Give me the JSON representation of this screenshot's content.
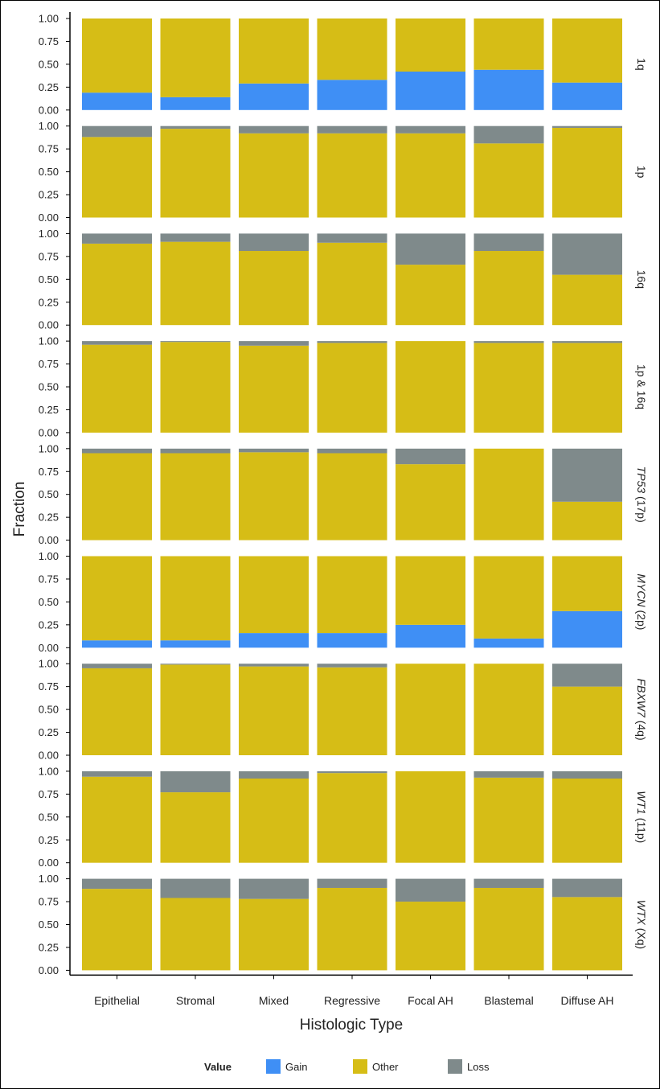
{
  "chart_data": {
    "type": "bar",
    "stacked": true,
    "facet_layout": "rows",
    "xlabel": "Histologic Type",
    "ylabel": "Fraction",
    "ylim": [
      0,
      1
    ],
    "yticks": [
      "0.00",
      "0.25",
      "0.50",
      "0.75",
      "1.00"
    ],
    "categories": [
      "Epithelial",
      "Stromal",
      "Mixed",
      "Regressive",
      "Focal AH",
      "Blastemal",
      "Diffuse AH"
    ],
    "legend": {
      "title": "Value",
      "position": "bottom",
      "items": [
        {
          "label": "Gain",
          "color": "#3f8ff5"
        },
        {
          "label": "Other",
          "color": "#d6bd16"
        },
        {
          "label": "Loss",
          "color": "#7f8a8b"
        }
      ]
    },
    "panels": [
      {
        "label": "1q",
        "italic": false,
        "gain": [
          0.19,
          0.14,
          0.29,
          0.33,
          0.42,
          0.44,
          0.3
        ],
        "loss": [
          0,
          0,
          0,
          0,
          0,
          0,
          0
        ]
      },
      {
        "label": "1p",
        "italic": false,
        "gain": [
          0,
          0,
          0,
          0,
          0,
          0,
          0
        ],
        "loss": [
          0.12,
          0.03,
          0.08,
          0.08,
          0.08,
          0.19,
          0.02
        ]
      },
      {
        "label": "16q",
        "italic": false,
        "gain": [
          0,
          0,
          0,
          0,
          0,
          0,
          0
        ],
        "loss": [
          0.11,
          0.09,
          0.19,
          0.1,
          0.34,
          0.19,
          0.45
        ]
      },
      {
        "label": "1p & 16q",
        "italic": false,
        "gain": [
          0,
          0,
          0,
          0,
          0,
          0,
          0
        ],
        "loss": [
          0.04,
          0.01,
          0.05,
          0.02,
          0,
          0.02,
          0.02
        ]
      },
      {
        "label": "TP53 (17p)",
        "italic_part": "TP53",
        "rest_part": " (17p)",
        "gain": [
          0,
          0,
          0,
          0,
          0,
          0,
          0
        ],
        "loss": [
          0.05,
          0.05,
          0.04,
          0.05,
          0.17,
          0,
          0.58
        ]
      },
      {
        "label": "MYCN (2p)",
        "italic_part": "MYCN",
        "rest_part": " (2p)",
        "gain": [
          0.08,
          0.08,
          0.16,
          0.16,
          0.25,
          0.1,
          0.4
        ],
        "loss": [
          0,
          0,
          0,
          0,
          0,
          0,
          0
        ]
      },
      {
        "label": "FBXW7 (4q)",
        "italic_part": "FBXW7",
        "rest_part": " (4q)",
        "gain": [
          0,
          0,
          0,
          0,
          0,
          0,
          0
        ],
        "loss": [
          0.05,
          0.01,
          0.03,
          0.04,
          0,
          0,
          0.25
        ]
      },
      {
        "label": "WT1 (11p)",
        "italic_part": "WT1",
        "rest_part": " (11p)",
        "gain": [
          0,
          0,
          0,
          0,
          0,
          0,
          0
        ],
        "loss": [
          0.06,
          0.23,
          0.08,
          0.02,
          0,
          0.07,
          0.08
        ]
      },
      {
        "label": "WTX (Xq)",
        "italic_part": "WTX",
        "rest_part": " (Xq)",
        "gain": [
          0,
          0,
          0,
          0,
          0,
          0,
          0
        ],
        "loss": [
          0.11,
          0.21,
          0.22,
          0.1,
          0.25,
          0.1,
          0.2
        ]
      }
    ]
  }
}
